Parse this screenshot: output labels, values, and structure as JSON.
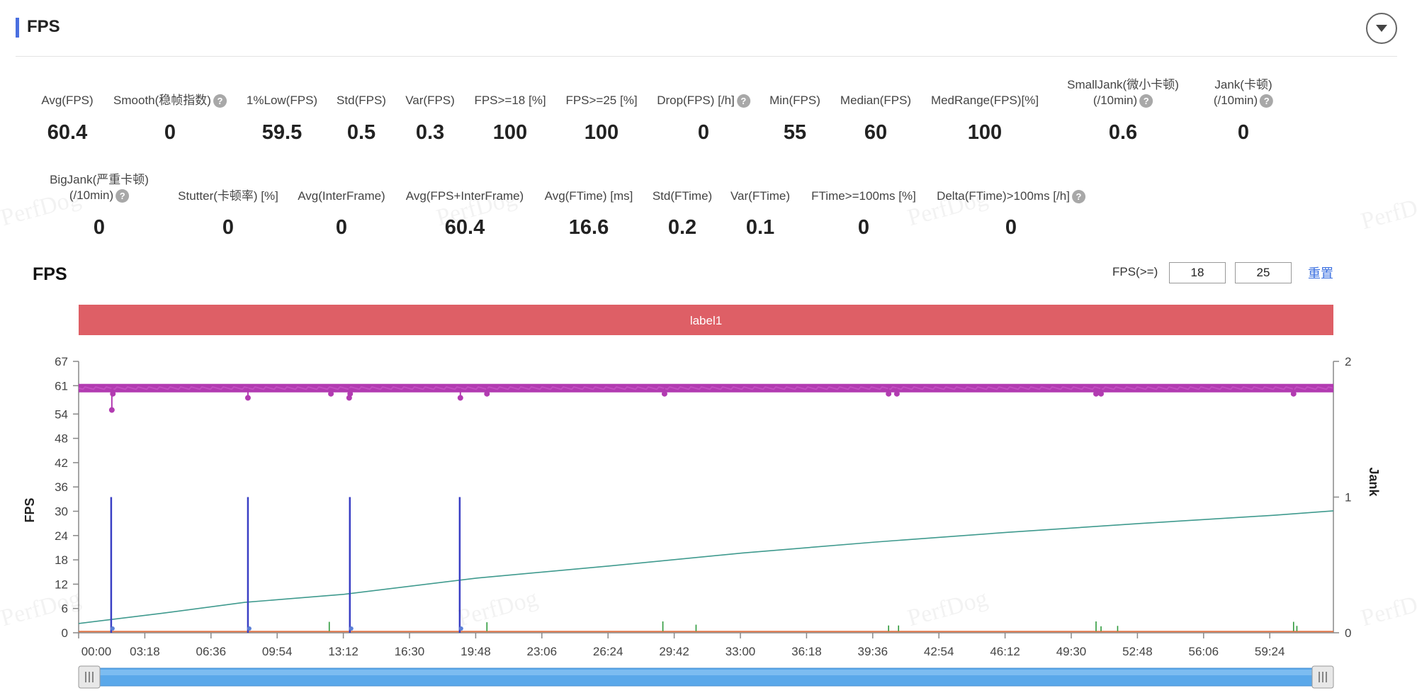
{
  "header": {
    "title": "FPS"
  },
  "stats_row1": [
    {
      "label": "Avg(FPS)",
      "value": "60.4",
      "help": false,
      "x": 95
    },
    {
      "label": "Smooth(稳帧指数)",
      "value": "0",
      "help": true,
      "x": 240
    },
    {
      "label": "1%Low(FPS)",
      "value": "59.5",
      "help": false,
      "x": 398
    },
    {
      "label": "Std(FPS)",
      "value": "0.5",
      "help": false,
      "x": 510
    },
    {
      "label": "Var(FPS)",
      "value": "0.3",
      "help": false,
      "x": 607
    },
    {
      "label": "FPS>=18 [%]",
      "value": "100",
      "help": false,
      "x": 720
    },
    {
      "label": "FPS>=25 [%]",
      "value": "100",
      "help": false,
      "x": 849
    },
    {
      "label": "Drop(FPS) [/h]",
      "value": "0",
      "help": true,
      "x": 993
    },
    {
      "label": "Min(FPS)",
      "value": "55",
      "help": false,
      "x": 1122
    },
    {
      "label": "Median(FPS)",
      "value": "60",
      "help": false,
      "x": 1236
    },
    {
      "label": "MedRange(FPS)[%]",
      "value": "100",
      "help": false,
      "x": 1390
    }
  ],
  "stats_row1b": [
    {
      "label1": "SmallJank(微小卡顿)",
      "label2": "(/10min)",
      "value": "0.6",
      "x": 1585
    },
    {
      "label1": "Jank(卡顿)",
      "label2": "(/10min)",
      "value": "0",
      "x": 1755
    }
  ],
  "stats_row2": [
    {
      "label1": "BigJank(严重卡顿)",
      "label2": "(/10min)",
      "value": "0",
      "x": 140,
      "twoLine": true
    },
    {
      "label": "Stutter(卡顿率) [%]",
      "value": "0",
      "x": 322
    },
    {
      "label": "Avg(InterFrame)",
      "value": "0",
      "x": 482
    },
    {
      "label": "Avg(FPS+InterFrame)",
      "value": "60.4",
      "x": 656
    },
    {
      "label": "Avg(FTime) [ms]",
      "value": "16.6",
      "x": 831
    },
    {
      "label": "Std(FTime)",
      "value": "0.2",
      "x": 963
    },
    {
      "label": "Var(FTime)",
      "value": "0.1",
      "x": 1073
    },
    {
      "label": "FTime>=100ms [%]",
      "value": "0",
      "x": 1219
    },
    {
      "label": "Delta(FTime)>100ms [/h]",
      "value": "0",
      "x": 1427,
      "help": true
    }
  ],
  "chart_header": {
    "title": "FPS",
    "threshold_label": "FPS(>=)",
    "threshold1": "18",
    "threshold2": "25",
    "reset_label": "重置"
  },
  "label_bar": {
    "text": "label1",
    "color": "#de5f66"
  },
  "watermark": "PerfDog",
  "chart_data": {
    "type": "line",
    "ylabel_left": "FPS",
    "ylabel_right": "Jank",
    "y_ticks_left": [
      0,
      6,
      12,
      18,
      24,
      30,
      36,
      42,
      48,
      54,
      61,
      67
    ],
    "y_ticks_right": [
      0,
      1,
      2
    ],
    "ylim_left": [
      0,
      67
    ],
    "ylim_right": [
      0,
      2
    ],
    "x_ticks": [
      "00:00",
      "03:18",
      "06:36",
      "09:54",
      "13:12",
      "16:30",
      "19:48",
      "23:06",
      "26:24",
      "29:42",
      "33:00",
      "36:18",
      "39:36",
      "42:54",
      "46:12",
      "49:30",
      "52:48",
      "56:06",
      "59:24"
    ],
    "xlim_seconds": [
      0,
      3780
    ],
    "fps_series": {
      "name": "FPS",
      "color": "#b23bb1",
      "baseline": 60.4,
      "dips": [
        [
          100,
          55
        ],
        [
          103,
          59
        ],
        [
          510,
          58
        ],
        [
          760,
          59
        ],
        [
          815,
          58
        ],
        [
          818,
          59
        ],
        [
          1150,
          58
        ],
        [
          1230,
          59
        ],
        [
          1765,
          59
        ],
        [
          2440,
          59
        ],
        [
          2465,
          59
        ],
        [
          3065,
          59
        ],
        [
          3080,
          59
        ],
        [
          3660,
          59
        ]
      ]
    },
    "jank_series": {
      "name": "Jank",
      "color": "#3a3fc4",
      "x_seconds": [
        98,
        510,
        817,
        1148
      ],
      "values": [
        1,
        1,
        1,
        1
      ]
    },
    "smalljank_series": {
      "name": "SmallJank",
      "color": "#2e9a3c",
      "x_seconds": [
        755,
        1230,
        1760,
        1860,
        2440,
        2470,
        3065,
        3080,
        3130,
        3660,
        3670
      ],
      "values": [
        2.7,
        2.6,
        2.8,
        2.0,
        1.8,
        1.8,
        2.8,
        1.6,
        1.7,
        2.7,
        1.7
      ]
    },
    "cumulative_series": {
      "name": "Cumulative",
      "color": "#3f9a8e",
      "points": [
        [
          0,
          2.3
        ],
        [
          250,
          4.8
        ],
        [
          500,
          7.5
        ],
        [
          800,
          9.5
        ],
        [
          1200,
          13.5
        ],
        [
          1600,
          16.5
        ],
        [
          2000,
          19.7
        ],
        [
          2400,
          22.4
        ],
        [
          2800,
          24.8
        ],
        [
          3200,
          27
        ],
        [
          3600,
          29
        ],
        [
          3780,
          30.1
        ]
      ]
    },
    "baseline_series": {
      "name": "Baseline",
      "color": "#e0774a",
      "value": 0.3
    }
  }
}
